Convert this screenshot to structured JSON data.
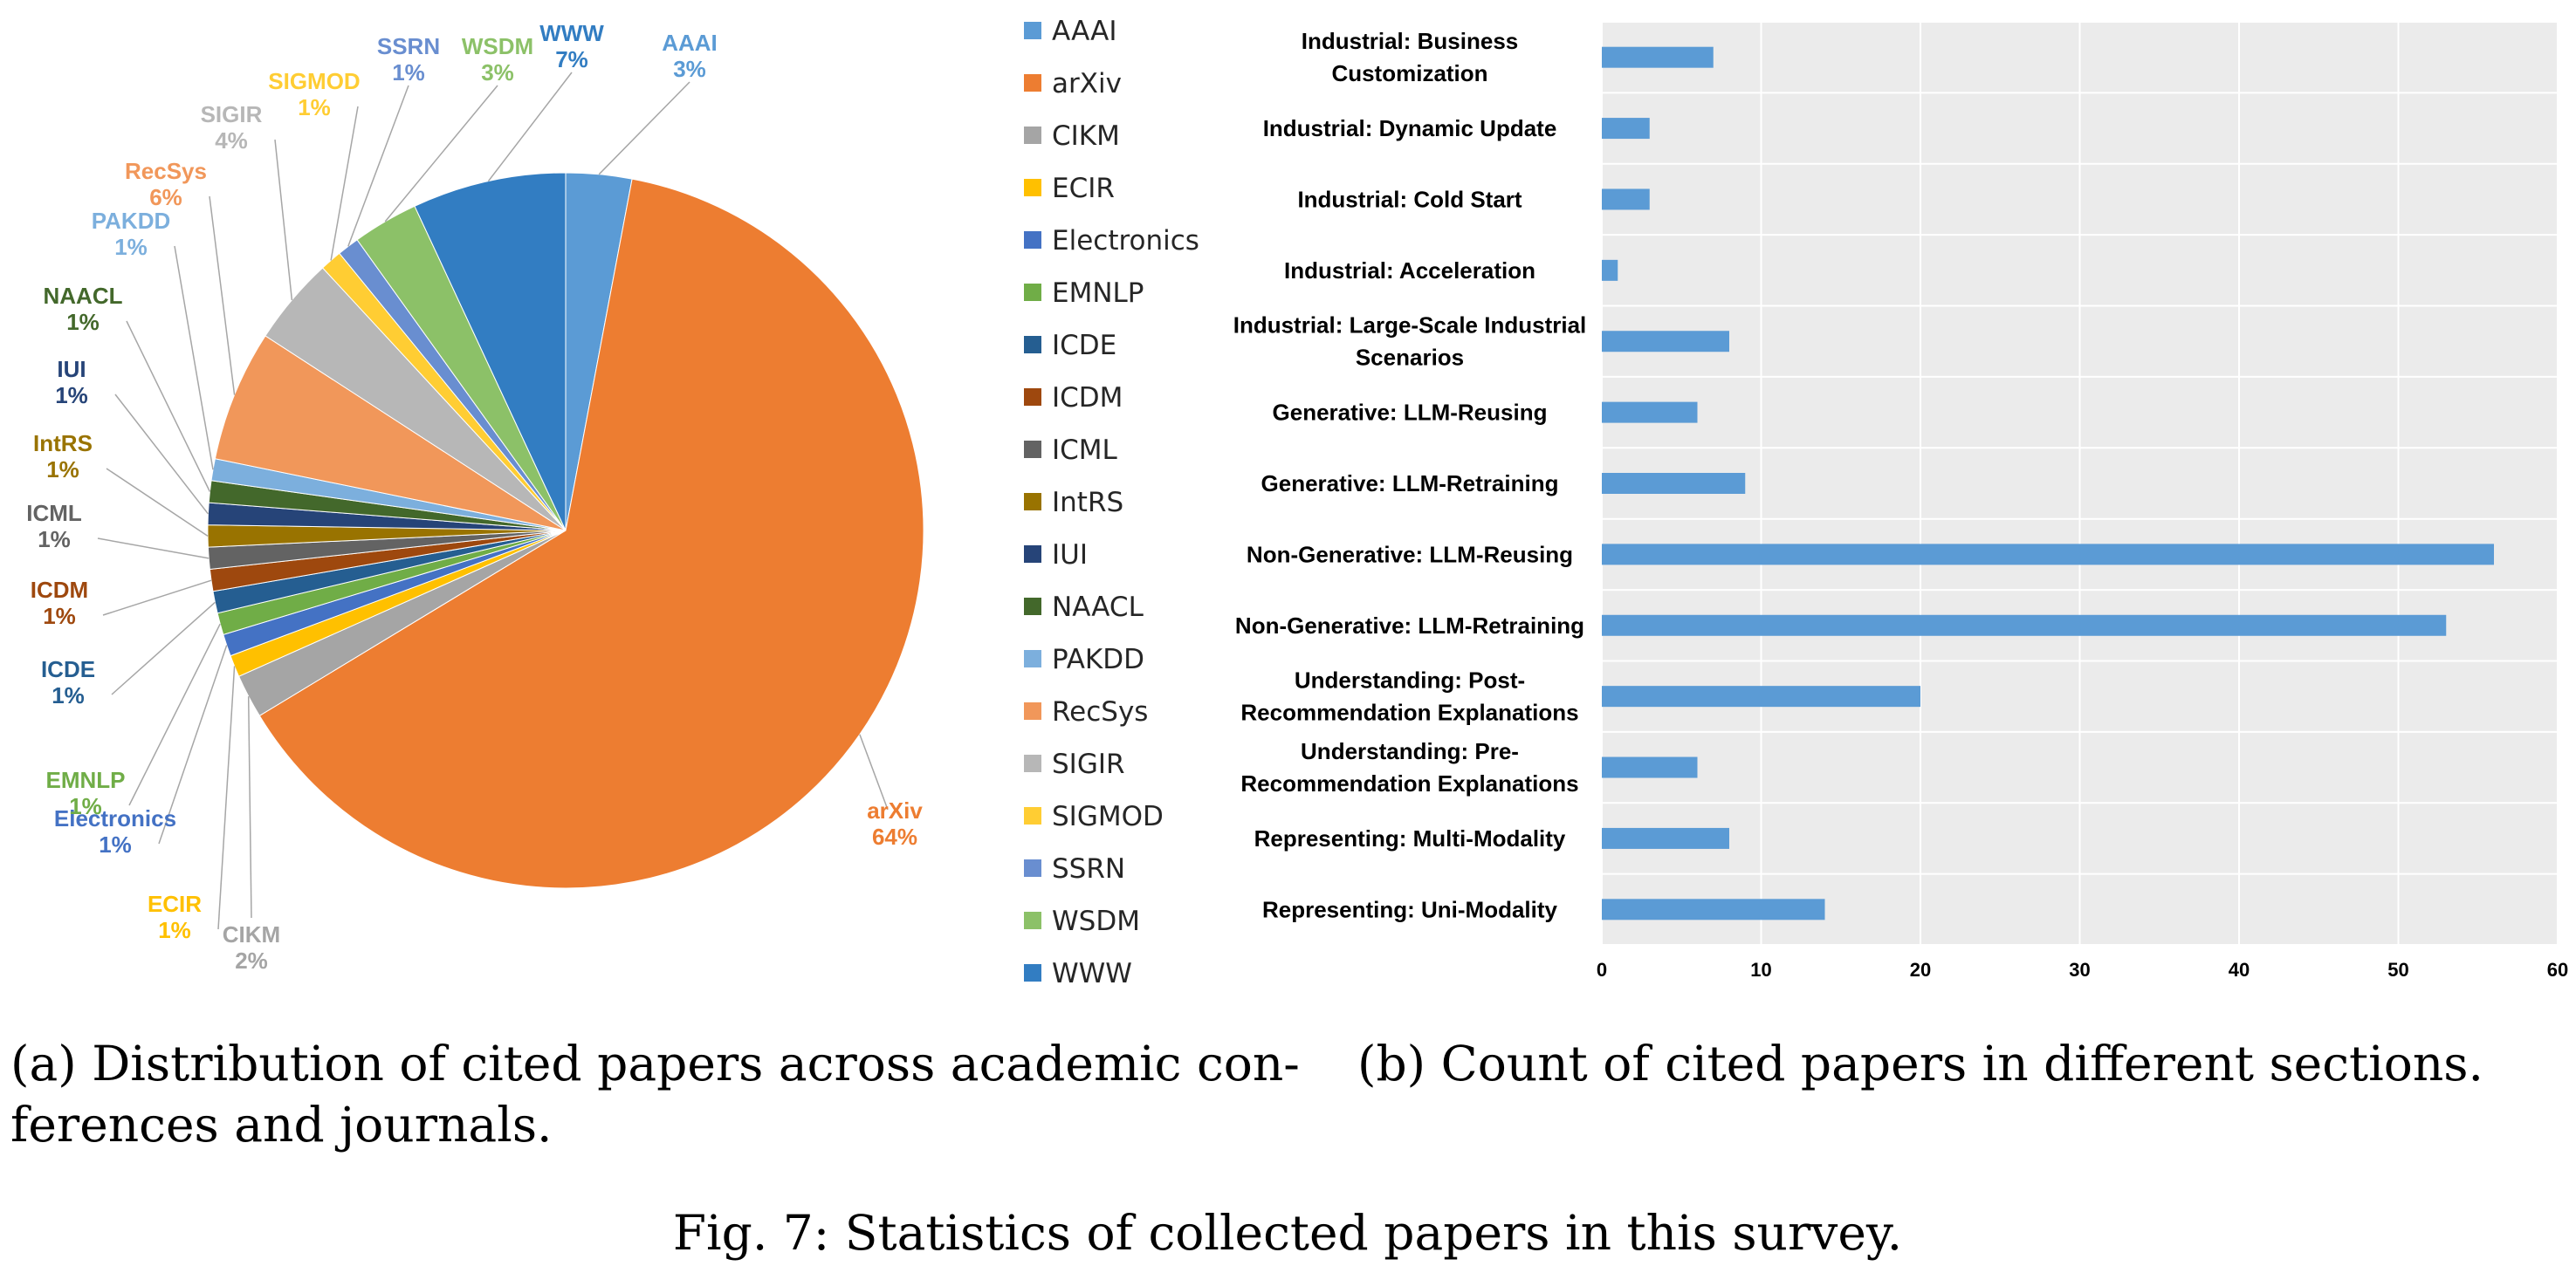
{
  "chart_data": [
    {
      "type": "pie",
      "slices": [
        {
          "label": "AAAI",
          "value": 3,
          "pct": "3%",
          "color": "#5b9bd5"
        },
        {
          "label": "arXiv",
          "value": 64,
          "pct": "64%",
          "color": "#ed7d31"
        },
        {
          "label": "CIKM",
          "value": 2,
          "pct": "2%",
          "color": "#a5a5a5"
        },
        {
          "label": "ECIR",
          "value": 1,
          "pct": "1%",
          "color": "#ffc000"
        },
        {
          "label": "Electronics",
          "value": 1,
          "pct": "1%",
          "color": "#4472c4"
        },
        {
          "label": "EMNLP",
          "value": 1,
          "pct": "1%",
          "color": "#70ad47"
        },
        {
          "label": "ICDE",
          "value": 1,
          "pct": "1%",
          "color": "#255e91"
        },
        {
          "label": "ICDM",
          "value": 1,
          "pct": "1%",
          "color": "#9e480e"
        },
        {
          "label": "ICML",
          "value": 1,
          "pct": "1%",
          "color": "#636363"
        },
        {
          "label": "IntRS",
          "value": 1,
          "pct": "1%",
          "color": "#997300"
        },
        {
          "label": "IUI",
          "value": 1,
          "pct": "1%",
          "color": "#264478"
        },
        {
          "label": "NAACL",
          "value": 1,
          "pct": "1%",
          "color": "#43682b"
        },
        {
          "label": "PAKDD",
          "value": 1,
          "pct": "1%",
          "color": "#7cafdd"
        },
        {
          "label": "RecSys",
          "value": 6,
          "pct": "6%",
          "color": "#f1975a"
        },
        {
          "label": "SIGIR",
          "value": 4,
          "pct": "4%",
          "color": "#b7b7b7"
        },
        {
          "label": "SIGMOD",
          "value": 1,
          "pct": "1%",
          "color": "#ffcd33"
        },
        {
          "label": "SSRN",
          "value": 1,
          "pct": "1%",
          "color": "#698ed0"
        },
        {
          "label": "WSDM",
          "value": 3,
          "pct": "3%",
          "color": "#8cc168"
        },
        {
          "label": "WWW",
          "value": 7,
          "pct": "7%",
          "color": "#327dc2"
        }
      ],
      "legend_position": "right"
    },
    {
      "type": "bar",
      "orientation": "horizontal",
      "categories": [
        "Industrial: Business Customization",
        "Industrial: Dynamic Update",
        "Industrial: Cold Start",
        "Industrial: Acceleration",
        "Industrial: Large-Scale Industrial Scenarios",
        "Generative: LLM-Reusing",
        "Generative: LLM-Retraining",
        "Non-Generative: LLM-Reusing",
        "Non-Generative: LLM-Retraining",
        "Understanding: Post-Recommendation Explanations",
        "Understanding: Pre-Recommendation Explanations",
        "Representing: Multi-Modality",
        "Representing: Uni-Modality"
      ],
      "category_lines": [
        [
          "Industrial: Business",
          "Customization"
        ],
        [
          "Industrial: Dynamic Update"
        ],
        [
          "Industrial: Cold Start"
        ],
        [
          "Industrial: Acceleration"
        ],
        [
          "Industrial: Large-Scale Industrial",
          "Scenarios"
        ],
        [
          "Generative: LLM-Reusing"
        ],
        [
          "Generative: LLM-Retraining"
        ],
        [
          "Non-Generative: LLM-Reusing"
        ],
        [
          "Non-Generative: LLM-Retraining"
        ],
        [
          "Understanding: Post-",
          "Recommendation Explanations"
        ],
        [
          "Understanding: Pre-",
          "Recommendation Explanations"
        ],
        [
          "Representing: Multi-Modality"
        ],
        [
          "Representing: Uni-Modality"
        ]
      ],
      "values": [
        7,
        3,
        3,
        1,
        8,
        6,
        9,
        56,
        53,
        20,
        6,
        8,
        14
      ],
      "xlim": [
        0,
        60
      ],
      "xticks": [
        0,
        10,
        20,
        30,
        40,
        50,
        60
      ],
      "grid": true,
      "bar_color": "#5b9bd5",
      "plot_bg": "#ebebeb"
    }
  ],
  "captions": {
    "a_line1": "(a) Distribution of cited papers across academic con-",
    "a_line2": "ferences and journals.",
    "b": "(b) Count of cited papers in different sections.",
    "figure": "Fig. 7: Statistics of collected papers in this survey."
  }
}
